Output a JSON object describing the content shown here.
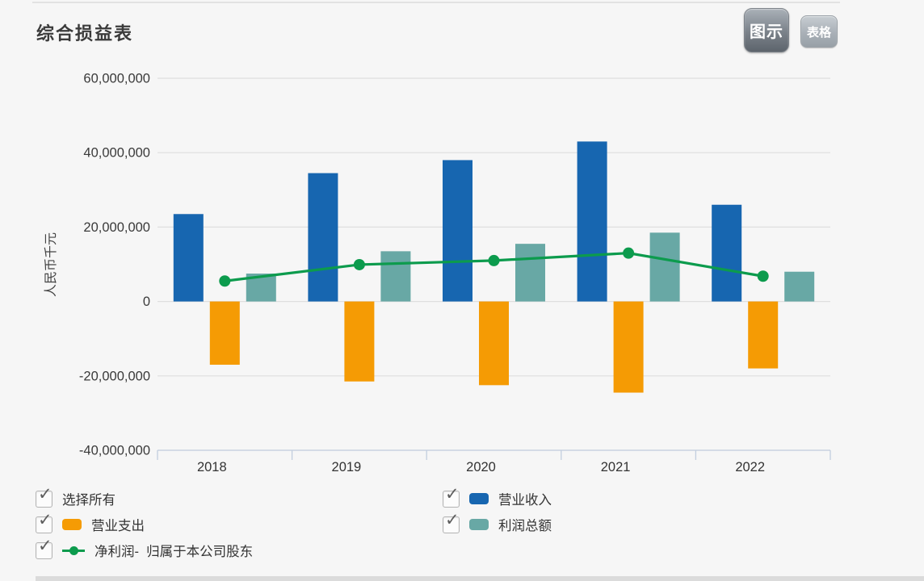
{
  "header": {
    "title": "综合损益表",
    "view_buttons": {
      "chart": "图示",
      "table": "表格"
    }
  },
  "icons": {
    "checkbox_check": "✓"
  },
  "colors": {
    "background": "#f6f6f6",
    "revenue_blue": "#1766b0",
    "expense_orange": "#f59b04",
    "profit_teal": "#68a8a5",
    "netprofit_green": "#0c9b4d",
    "grid": "#dedede",
    "axis": "#c2cedf",
    "text": "#333333"
  },
  "chart_data": {
    "type": "bar",
    "title": "综合损益表",
    "categories": [
      "2018",
      "2019",
      "2020",
      "2021",
      "2022"
    ],
    "xlabel": "",
    "ylabel": "人民币千元",
    "ylim": [
      -40000000,
      60000000
    ],
    "ytick_interval": 20000000,
    "ytick_labels": [
      "60,000,000",
      "40,000,000",
      "20,000,000",
      "0",
      "-20,000,000",
      "-40,000,000"
    ],
    "grid": true,
    "legend_position": "bottom",
    "series": [
      {
        "name": "营业收入",
        "kind": "bar",
        "color": "#1766b0",
        "values": [
          23500000,
          34500000,
          38000000,
          43000000,
          26000000
        ]
      },
      {
        "name": "营业支出",
        "kind": "bar",
        "color": "#f59b04",
        "values": [
          -17000000,
          -21500000,
          -22500000,
          -24500000,
          -18000000
        ]
      },
      {
        "name": "利润总额",
        "kind": "bar",
        "color": "#68a8a5",
        "values": [
          7500000,
          13500000,
          15500000,
          18500000,
          8000000
        ]
      },
      {
        "name": "净利润-  归属于本公司股东",
        "kind": "line",
        "color": "#0c9b4d",
        "values": [
          5500000,
          9900000,
          11000000,
          13000000,
          6800000
        ]
      }
    ]
  },
  "legend": {
    "columns": [
      {
        "items": [
          {
            "key": "select-all",
            "label": "选择所有",
            "swatch": "none",
            "checked": true
          },
          {
            "key": "operating-expenses",
            "label": "营业支出",
            "swatch": "bar",
            "color": "#f59b04",
            "checked": true
          },
          {
            "key": "net-profit-attributable",
            "label": "净利润-  归属于本公司股东",
            "swatch": "line",
            "color": "#0c9b4d",
            "checked": true
          }
        ]
      },
      {
        "items": [
          {
            "key": "operating-revenue",
            "label": "营业收入",
            "swatch": "bar",
            "color": "#1766b0",
            "checked": true
          },
          {
            "key": "total-profit",
            "label": "利润总额",
            "swatch": "bar",
            "color": "#68a8a5",
            "checked": true
          }
        ]
      }
    ]
  }
}
